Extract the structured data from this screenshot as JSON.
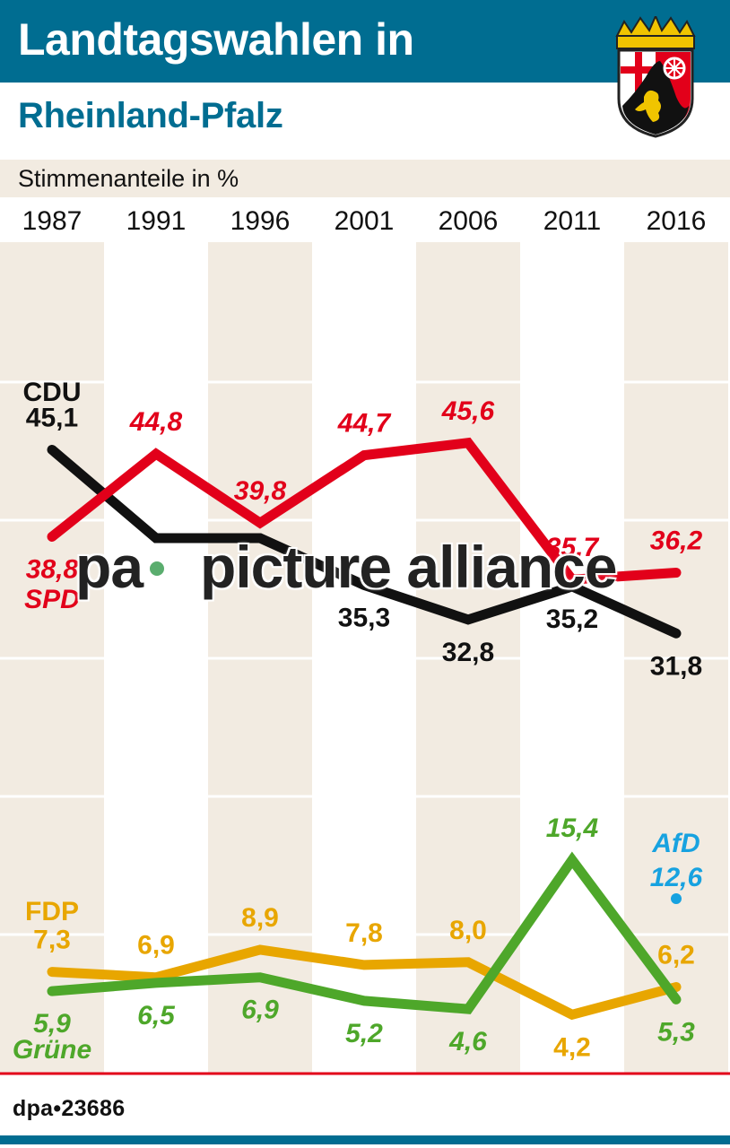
{
  "header": {
    "title_line1": "Landtagswahlen in",
    "title_line2": "Rheinland-Pfalz",
    "crest_icon": "rheinland-pfalz-coat-of-arms"
  },
  "subtitle": "Stimmenanteile in %",
  "footer": {
    "source": "dpa•23686"
  },
  "watermark": {
    "left": "pa",
    "right": "picture alliance"
  },
  "colors": {
    "header_bg": "#006d91",
    "band_bg": "#f2ebe1",
    "CDU": "#111111",
    "SPD": "#e2001a",
    "FDP": "#e8a600",
    "Grüne": "#4ea72a",
    "AfD": "#17a2e0",
    "baseline": "#e2001a"
  },
  "chart_data": {
    "type": "line",
    "title": "Landtagswahlen in Rheinland-Pfalz",
    "subtitle": "Stimmenanteile in %",
    "xlabel": "",
    "ylabel": "Stimmenanteile in %",
    "categories": [
      "1987",
      "1991",
      "1996",
      "2001",
      "2006",
      "2011",
      "2016"
    ],
    "ylim": [
      0,
      50
    ],
    "grid": true,
    "gridlines_y": [
      10,
      20,
      30,
      40,
      50
    ],
    "series": [
      {
        "name": "CDU",
        "color": "#111111",
        "italic": false,
        "values": [
          45.1,
          38.7,
          38.7,
          35.3,
          32.8,
          35.2,
          31.8
        ],
        "labels": [
          "45,1",
          "",
          "",
          "35,3",
          "32,8",
          "35,2",
          "31,8"
        ],
        "label_pos": [
          "above",
          "hidden",
          "hidden",
          "below",
          "below",
          "below",
          "below"
        ]
      },
      {
        "name": "SPD",
        "color": "#e2001a",
        "italic": true,
        "values": [
          38.8,
          44.8,
          39.8,
          44.7,
          45.6,
          35.7,
          36.2
        ],
        "labels": [
          "38,8",
          "44,8",
          "39,8",
          "44,7",
          "45,6",
          "35,7",
          "36,2"
        ],
        "label_pos": [
          "below",
          "above",
          "above",
          "above",
          "above",
          "above",
          "above"
        ]
      },
      {
        "name": "FDP",
        "color": "#e8a600",
        "italic": false,
        "values": [
          7.3,
          6.9,
          8.9,
          7.8,
          8.0,
          4.2,
          6.2
        ],
        "labels": [
          "7,3",
          "6,9",
          "8,9",
          "7,8",
          "8,0",
          "4,2",
          "6,2"
        ],
        "label_pos": [
          "above",
          "above",
          "above",
          "above",
          "above",
          "below",
          "above"
        ]
      },
      {
        "name": "Grüne",
        "color": "#4ea72a",
        "italic": true,
        "values": [
          5.9,
          6.5,
          6.9,
          5.2,
          4.6,
          15.4,
          5.3
        ],
        "labels": [
          "5,9",
          "6,5",
          "6,9",
          "5,2",
          "4,6",
          "15,4",
          "5,3"
        ],
        "label_pos": [
          "below",
          "below",
          "below",
          "below",
          "below",
          "above",
          "below"
        ]
      },
      {
        "name": "AfD",
        "color": "#17a2e0",
        "italic": true,
        "values": [
          null,
          null,
          null,
          null,
          null,
          null,
          12.6
        ],
        "labels": [
          "",
          "",
          "",
          "",
          "",
          "",
          "12,6"
        ],
        "label_pos": [
          "",
          "",
          "",
          "",
          "",
          "",
          "above"
        ]
      }
    ],
    "annotations": [
      "CDU",
      "SPD",
      "FDP",
      "Grüne",
      "AfD"
    ]
  }
}
